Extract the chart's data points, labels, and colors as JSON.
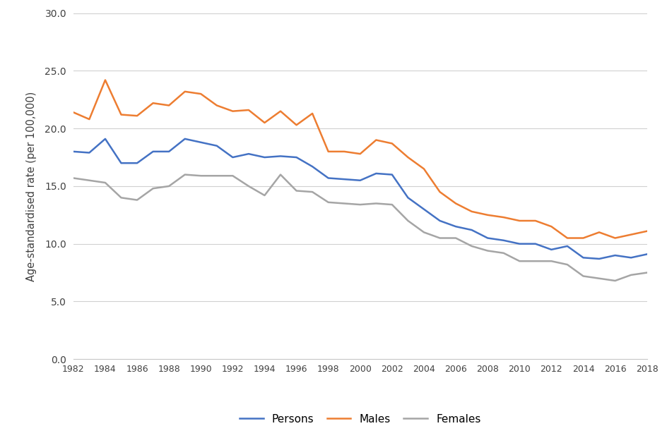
{
  "years": [
    1982,
    1983,
    1984,
    1985,
    1986,
    1987,
    1988,
    1989,
    1990,
    1991,
    1992,
    1993,
    1994,
    1995,
    1996,
    1997,
    1998,
    1999,
    2000,
    2001,
    2002,
    2003,
    2004,
    2005,
    2006,
    2007,
    2008,
    2009,
    2010,
    2011,
    2012,
    2013,
    2014,
    2015,
    2016,
    2017,
    2018
  ],
  "persons": [
    18.0,
    17.9,
    19.1,
    17.0,
    17.0,
    18.0,
    18.0,
    19.1,
    18.8,
    18.5,
    17.5,
    17.8,
    17.5,
    17.6,
    17.5,
    16.7,
    15.7,
    15.6,
    15.5,
    16.1,
    16.0,
    14.0,
    13.0,
    12.0,
    11.5,
    11.2,
    10.5,
    10.3,
    10.0,
    10.0,
    9.5,
    9.8,
    8.8,
    8.7,
    9.0,
    8.8,
    9.1
  ],
  "males": [
    21.4,
    20.8,
    24.2,
    21.2,
    21.1,
    22.2,
    22.0,
    23.2,
    23.0,
    22.0,
    21.5,
    21.6,
    20.5,
    21.5,
    20.3,
    21.3,
    18.0,
    18.0,
    17.8,
    19.0,
    18.7,
    17.5,
    16.5,
    14.5,
    13.5,
    12.8,
    12.5,
    12.3,
    12.0,
    12.0,
    11.5,
    10.5,
    10.5,
    11.0,
    10.5,
    10.8,
    11.1
  ],
  "females": [
    15.7,
    15.5,
    15.3,
    14.0,
    13.8,
    14.8,
    15.0,
    16.0,
    15.9,
    15.9,
    15.9,
    15.0,
    14.2,
    16.0,
    14.6,
    14.5,
    13.6,
    13.5,
    13.4,
    13.5,
    13.4,
    12.0,
    11.0,
    10.5,
    10.5,
    9.8,
    9.4,
    9.2,
    8.5,
    8.5,
    8.5,
    8.2,
    7.2,
    7.0,
    6.8,
    7.3,
    7.5
  ],
  "persons_color": "#4472C4",
  "males_color": "#ED7D31",
  "females_color": "#A5A5A5",
  "ylabel": "Age-standardised rate (per 100,000)",
  "ylim": [
    0.0,
    30.0
  ],
  "yticks": [
    0.0,
    5.0,
    10.0,
    15.0,
    20.0,
    25.0,
    30.0
  ],
  "xtick_step": 2,
  "legend_labels": [
    "Persons",
    "Males",
    "Females"
  ],
  "bg_color": "#ffffff",
  "grid_color": "#d0d0d0",
  "line_width": 1.8
}
